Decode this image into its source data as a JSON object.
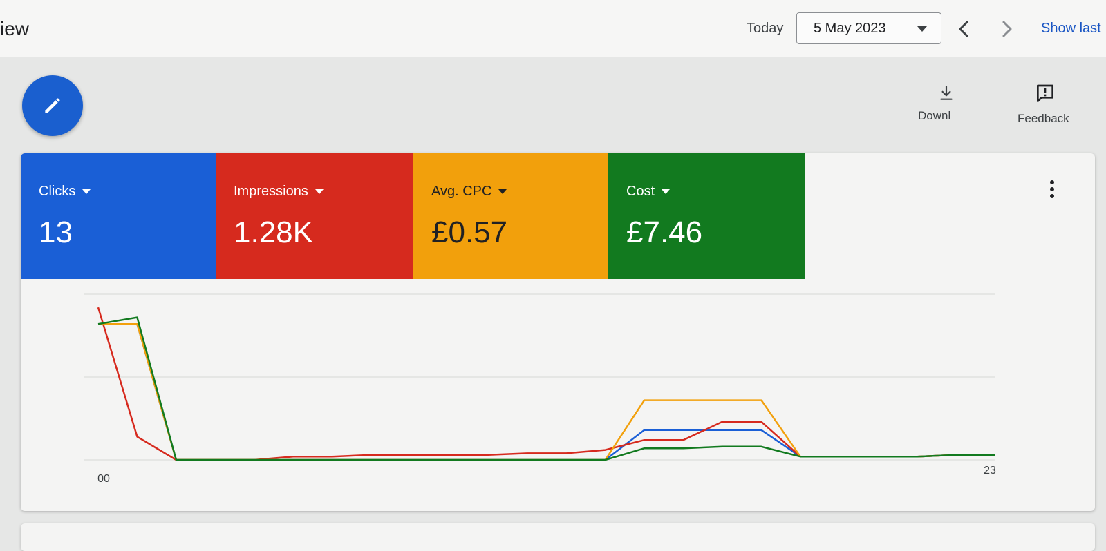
{
  "header": {
    "title": "iew",
    "today_label": "Today",
    "date_value": "5 May 2023",
    "show_last_label": "Show last"
  },
  "toolbar": {
    "download_label": "Downl",
    "feedback_label": "Feedback"
  },
  "icons": {
    "edit": "pencil-icon",
    "download": "download-icon",
    "feedback": "feedback-icon",
    "more": "more-vert-icon",
    "prev": "chevron-left-icon",
    "next": "chevron-right-icon"
  },
  "metrics": [
    {
      "label": "Clicks",
      "value": "13",
      "color": "#1a5fd6"
    },
    {
      "label": "Impressions",
      "value": "1.28K",
      "color": "#d62a1e"
    },
    {
      "label": "Avg. CPC",
      "value": "£0.57",
      "color": "#f2a00c"
    },
    {
      "label": "Cost",
      "value": "£7.46",
      "color": "#127a1f"
    }
  ],
  "chart_data": {
    "type": "line",
    "x": [
      0,
      1,
      2,
      3,
      4,
      5,
      6,
      7,
      8,
      9,
      10,
      11,
      12,
      13,
      14,
      15,
      16,
      17,
      18,
      19,
      20,
      21,
      22,
      23
    ],
    "x_tick_labels": [
      {
        "x": 0,
        "label": "00"
      },
      {
        "x": 23,
        "label": "23"
      }
    ],
    "ylim": [
      0,
      1
    ],
    "gridlines": [
      0,
      0.5,
      1
    ],
    "grid": true,
    "series": [
      {
        "color": "#1a5fd6",
        "values": [
          0.82,
          0.82,
          0,
          0,
          0,
          0,
          0,
          0,
          0,
          0,
          0,
          0,
          0,
          0,
          0.18,
          0.18,
          0.18,
          0.18,
          0.02,
          0.02,
          0.02,
          0.02,
          0.03,
          0.03
        ]
      },
      {
        "color": "#d62a1e",
        "values": [
          0.92,
          0.14,
          0,
          0,
          0,
          0.02,
          0.02,
          0.03,
          0.03,
          0.03,
          0.03,
          0.04,
          0.04,
          0.06,
          0.12,
          0.12,
          0.23,
          0.23,
          0.02,
          0.02,
          0.02,
          0.02,
          0.03,
          0.03
        ]
      },
      {
        "color": "#f2a00c",
        "values": [
          0.82,
          0.82,
          0,
          0,
          0,
          0,
          0,
          0,
          0,
          0,
          0,
          0,
          0,
          0,
          0.36,
          0.36,
          0.36,
          0.36,
          0.02,
          0.02,
          0.02,
          0.02,
          0.03,
          0.03
        ]
      },
      {
        "color": "#127a1f",
        "values": [
          0.82,
          0.86,
          0,
          0,
          0,
          0,
          0,
          0,
          0,
          0,
          0,
          0,
          0,
          0,
          0.07,
          0.07,
          0.08,
          0.08,
          0.02,
          0.02,
          0.02,
          0.02,
          0.03,
          0.03
        ]
      }
    ]
  }
}
